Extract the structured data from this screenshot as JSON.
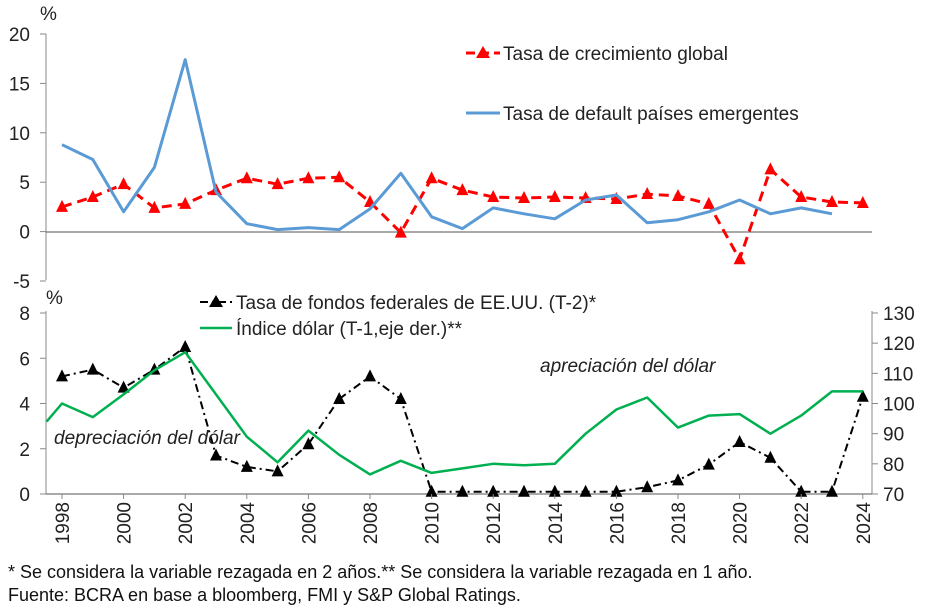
{
  "top_chart": {
    "type": "line",
    "ylabel": "%",
    "ylim": [
      -5,
      20
    ],
    "yticks": [
      -5,
      0,
      5,
      10,
      15,
      20
    ],
    "legend": [
      "Tasa de crecimiento global",
      "Tasa de default países emergentes"
    ],
    "series": [
      {
        "name": "Tasa de crecimiento global",
        "color": "#ff0000",
        "x": [
          1998,
          1999,
          2000,
          2001,
          2002,
          2003,
          2004,
          2005,
          2006,
          2007,
          2008,
          2009,
          2010,
          2011,
          2012,
          2013,
          2014,
          2015,
          2016,
          2017,
          2018,
          2019,
          2020,
          2021,
          2022,
          2023,
          2024
        ],
        "values": [
          2.5,
          3.5,
          4.8,
          2.4,
          2.8,
          4.2,
          5.4,
          4.8,
          5.4,
          5.5,
          3.0,
          -0.1,
          5.4,
          4.2,
          3.5,
          3.4,
          3.5,
          3.4,
          3.3,
          3.8,
          3.6,
          2.8,
          -2.8,
          6.3,
          3.5,
          3.0,
          2.9
        ]
      },
      {
        "name": "Tasa de default países emergentes",
        "color": "#5b9bd5",
        "x": [
          1998,
          1999,
          2000,
          2001,
          2002,
          2003,
          2004,
          2005,
          2006,
          2007,
          2008,
          2009,
          2010,
          2011,
          2012,
          2013,
          2014,
          2015,
          2016,
          2017,
          2018,
          2019,
          2020,
          2021,
          2022,
          2023
        ],
        "values": [
          8.8,
          7.3,
          2.0,
          6.5,
          17.4,
          4.0,
          0.8,
          0.2,
          0.4,
          0.2,
          2.3,
          5.9,
          1.5,
          0.3,
          2.4,
          1.8,
          1.3,
          3.2,
          3.7,
          0.9,
          1.2,
          2.0,
          3.2,
          1.8,
          2.4,
          1.8
        ]
      }
    ]
  },
  "bottom_chart": {
    "type": "line",
    "ylabel": "%",
    "ylim": [
      0,
      8
    ],
    "yticks": [
      0,
      2,
      4,
      6,
      8
    ],
    "y2lim": [
      70,
      130
    ],
    "y2ticks": [
      70,
      80,
      90,
      100,
      110,
      120,
      130
    ],
    "legend": [
      "Tasa de fondos federales de EE.UU. (T-2)*",
      "Índice dólar (T-1,eje der.)**"
    ],
    "series": [
      {
        "name": "Tasa de fondos federales de EE.UU. (T-2)*",
        "color": "#000000",
        "axis": "left",
        "x": [
          1998,
          1999,
          2000,
          2001,
          2002,
          2003,
          2004,
          2005,
          2006,
          2007,
          2008,
          2009,
          2010,
          2011,
          2012,
          2013,
          2014,
          2015,
          2016,
          2017,
          2018,
          2019,
          2020,
          2021,
          2022,
          2023,
          2024
        ],
        "values": [
          5.2,
          5.5,
          4.7,
          5.5,
          6.5,
          1.7,
          1.2,
          1.0,
          2.2,
          4.2,
          5.2,
          4.2,
          0.1,
          0.1,
          0.1,
          0.1,
          0.1,
          0.1,
          0.1,
          0.3,
          0.6,
          1.3,
          2.3,
          1.6,
          0.1,
          0.1,
          4.3
        ]
      },
      {
        "name": "Índice dólar (T-1,eje der.)**",
        "color": "#00b050",
        "axis": "right",
        "x": [
          1997.5,
          1998,
          1999,
          2000,
          2001,
          2002,
          2003,
          2004,
          2005,
          2006,
          2007,
          2008,
          2009,
          2010,
          2011,
          2012,
          2013,
          2014,
          2015,
          2016,
          2017,
          2018,
          2019,
          2020,
          2021,
          2022,
          2023,
          2024
        ],
        "values": [
          94,
          100,
          95.5,
          103,
          111,
          117,
          103,
          89,
          80.5,
          91,
          83,
          76.5,
          81,
          77,
          78.5,
          80,
          79.5,
          80,
          90,
          98,
          102,
          92,
          96,
          96.5,
          90,
          96,
          104,
          104
        ]
      }
    ],
    "annotations": [
      "apreciación del dólar",
      "depreciación del dólar"
    ]
  },
  "xaxis": {
    "ticks": [
      "1998",
      "2000",
      "2002",
      "2004",
      "2006",
      "2008",
      "2010",
      "2012",
      "2014",
      "2016",
      "2018",
      "2020",
      "2022",
      "2024"
    ]
  },
  "footnotes": {
    "note": "* Se considera la variable rezagada en 2 años.** Se considera la variable rezagada en 1 año.",
    "source": "Fuente: BCRA en base a bloomberg, FMI y S&P Global Ratings."
  }
}
